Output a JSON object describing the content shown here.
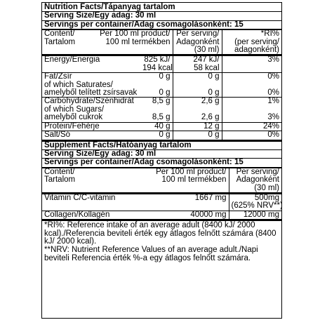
{
  "nutrition": {
    "title": "Nutrition Facts/Tápanyag tartalom",
    "serving_size": "Serving Size/Egy adag: 30 ml",
    "servings_per_container": "Servings per container/Adag csomagolásonként: 15",
    "header": {
      "c1a": "Content/",
      "c1b": "Tartalom",
      "c2a": "Per 100 ml product/",
      "c2b": "100 ml termékben",
      "c3a": "Per serving/",
      "c3b": "Adagonként",
      "c3c": "(30 ml)",
      "c4a": "*RI%",
      "c4b": "(per serving/",
      "c4c": "adagonként)"
    },
    "energy": {
      "label": "Energy/Energia",
      "per100_kj": "825 kJ/",
      "per100_kcal": "194 kcal",
      "serv_kj": "247 kJ/",
      "serv_kcal": "58 kcal",
      "ri": "3%"
    },
    "fat": {
      "label": "Fat/Zsír",
      "per100": "0 g",
      "serv": "0 g",
      "ri": "0%"
    },
    "saturates": {
      "label1": "of which Saturates/",
      "label2": "amelyből telített zsírsavak",
      "per100": "0 g",
      "serv": "0 g",
      "ri": "0%"
    },
    "carbs": {
      "label": "Carbohydrate/Szénhidrát",
      "per100": "8,5 g",
      "serv": "2,6 g",
      "ri": "1%"
    },
    "sugars": {
      "label1": "of which Sugars/",
      "label2": "amelyből cukrok",
      "per100": "8,5 g",
      "serv": "2,6 g",
      "ri": "3%"
    },
    "protein": {
      "label": "Protein/Fehérje",
      "per100": "40 g",
      "serv": "12 g",
      "ri": "24%"
    },
    "salt": {
      "label": "Salt/Só",
      "per100": "0 g",
      "serv": "0 g",
      "ri": "0%"
    }
  },
  "supplement": {
    "title": "Supplement Facts/Hatóanyag tartalom",
    "serving_size": "Serving Size/Egy adag: 30 ml",
    "servings_per_container": "Servings per container/Adag csomagolásonként: 15",
    "header": {
      "c1a": "Content/",
      "c1b": "Tartalom",
      "c2a": "Per 100 ml product/",
      "c2b": "100 ml termékben",
      "c3a": "Per serving/",
      "c3b": "Adagonként",
      "c3c": "(30 ml)"
    },
    "vitamin_c": {
      "label": "Vitamin C/C-vitamin",
      "per100": "1667 mg",
      "serv": "500mg",
      "nrv": "(625% NRV**)"
    },
    "collagen": {
      "label": "Collagen/Kollagén",
      "per100": "40000 mg",
      "serv": "12000 mg"
    }
  },
  "footnotes": {
    "ri": "*RI%: Reference intake of an average adult (8400 kJ/ 2000 kcal)./Referencia beviteli érték egy átlagos felnőtt számára (8400 kJ/ 2000 kcal).",
    "nrv": "**NRV: Nutrient Reference Values of an average adult./Napi beviteli Referencia érték %-a egy átlagos felnőtt számára."
  }
}
